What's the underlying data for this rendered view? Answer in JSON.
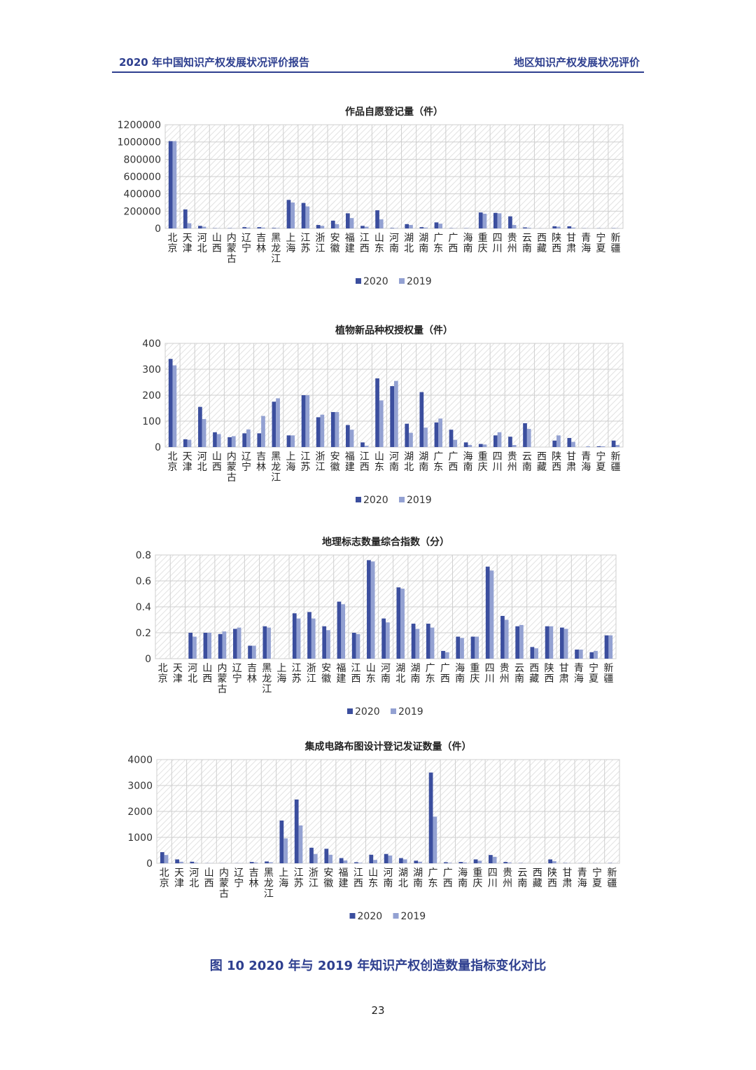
{
  "header": {
    "left": "2020 年中国知识产权发展状况评价报告",
    "right": "地区知识产权发展状况评价"
  },
  "caption": "图 10   2020 年与 2019 年知识产权创造数量指标变化对比",
  "page_number": "23",
  "colors": {
    "s2020": "#3b4e9e",
    "s2019": "#93a1d2",
    "grid": "#cfcfcf",
    "hatch": "#e2e2e2"
  },
  "regions": [
    "北京",
    "天津",
    "河北",
    "山西",
    "内蒙古",
    "辽宁",
    "吉林",
    "黑龙江",
    "上海",
    "江苏",
    "浙江",
    "安徽",
    "福建",
    "江西",
    "山东",
    "河南",
    "湖北",
    "湖南",
    "广东",
    "广西",
    "海南",
    "重庆",
    "四川",
    "贵州",
    "云南",
    "西藏",
    "陕西",
    "甘肃",
    "青海",
    "宁夏",
    "新疆"
  ],
  "chart_data": [
    {
      "type": "bar",
      "title": "作品自愿登记量（件）",
      "categories": [
        "北京",
        "天津",
        "河北",
        "山西",
        "内蒙古",
        "辽宁",
        "吉林",
        "黑龙江",
        "上海",
        "江苏",
        "浙江",
        "安徽",
        "福建",
        "江西",
        "山东",
        "河南",
        "湖北",
        "湖南",
        "广东",
        "广西",
        "海南",
        "重庆",
        "四川",
        "贵州",
        "云南",
        "西藏",
        "陕西",
        "甘肃",
        "青海",
        "宁夏",
        "新疆"
      ],
      "ylim": [
        0,
        1200000
      ],
      "yticks": [
        "0",
        "200000",
        "400000",
        "600000",
        "800000",
        "1000000",
        "1200000"
      ],
      "series": [
        {
          "name": "2020",
          "values": [
            1010000,
            220000,
            30000,
            3000,
            3000,
            15000,
            15000,
            6000,
            330000,
            295000,
            40000,
            90000,
            175000,
            30000,
            210000,
            5000,
            50000,
            15000,
            70000,
            3000,
            3000,
            185000,
            180000,
            140000,
            12000,
            1000,
            25000,
            25000,
            2000,
            2000,
            3000
          ]
        },
        {
          "name": "2019",
          "values": [
            1010000,
            60000,
            20000,
            2000,
            2000,
            10000,
            10000,
            5000,
            300000,
            255000,
            30000,
            50000,
            120000,
            20000,
            105000,
            4000,
            40000,
            10000,
            55000,
            2000,
            2000,
            170000,
            175000,
            40000,
            8000,
            800,
            20000,
            10000,
            1000,
            1000,
            2000
          ]
        }
      ]
    },
    {
      "type": "bar",
      "title": "植物新品种权授权量（件）",
      "categories": [
        "北京",
        "天津",
        "河北",
        "山西",
        "内蒙古",
        "辽宁",
        "吉林",
        "黑龙江",
        "上海",
        "江苏",
        "浙江",
        "安徽",
        "福建",
        "江西",
        "山东",
        "河南",
        "湖北",
        "湖南",
        "广东",
        "广西",
        "海南",
        "重庆",
        "四川",
        "贵州",
        "云南",
        "西藏",
        "陕西",
        "甘肃",
        "青海",
        "宁夏",
        "新疆"
      ],
      "ylim": [
        0,
        400
      ],
      "yticks": [
        "0",
        "100",
        "200",
        "300",
        "400"
      ],
      "series": [
        {
          "name": "2020",
          "values": [
            340,
            30,
            155,
            57,
            38,
            53,
            53,
            175,
            45,
            200,
            115,
            135,
            85,
            18,
            265,
            235,
            90,
            212,
            95,
            67,
            18,
            12,
            45,
            40,
            92,
            0,
            25,
            35,
            0,
            3,
            25
          ]
        },
        {
          "name": "2019",
          "values": [
            315,
            28,
            108,
            50,
            42,
            68,
            120,
            188,
            45,
            200,
            125,
            135,
            67,
            5,
            180,
            255,
            55,
            75,
            110,
            28,
            8,
            10,
            57,
            8,
            70,
            0,
            45,
            20,
            3,
            3,
            8
          ]
        }
      ]
    },
    {
      "type": "bar",
      "title": "地理标志数量综合指数（分）",
      "categories": [
        "北京",
        "天津",
        "河北",
        "山西",
        "内蒙古",
        "辽宁",
        "吉林",
        "黑龙江",
        "上海",
        "江苏",
        "浙江",
        "安徽",
        "福建",
        "江西",
        "山东",
        "河南",
        "湖北",
        "湖南",
        "广东",
        "广西",
        "海南",
        "重庆",
        "四川",
        "贵州",
        "云南",
        "西藏",
        "陕西",
        "甘肃",
        "青海",
        "宁夏",
        "新疆"
      ],
      "ylim": [
        0,
        0.8
      ],
      "yticks": [
        "0",
        "0.2",
        "0.4",
        "0.6",
        "0.8"
      ],
      "series": [
        {
          "name": "2020",
          "values": [
            0,
            0,
            0.2,
            0.2,
            0.19,
            0.23,
            0.1,
            0.25,
            0,
            0.35,
            0.36,
            0.25,
            0.44,
            0.2,
            0.76,
            0.31,
            0.55,
            0.27,
            0.27,
            0.06,
            0.17,
            0.17,
            0.71,
            0.33,
            0.25,
            0.09,
            0.25,
            0.24,
            0.07,
            0.05,
            0.18
          ]
        },
        {
          "name": "2019",
          "values": [
            0,
            0,
            0.17,
            0.2,
            0.21,
            0.24,
            0.1,
            0.24,
            0,
            0.31,
            0.31,
            0.22,
            0.42,
            0.19,
            0.75,
            0.28,
            0.54,
            0.23,
            0.24,
            0.05,
            0.16,
            0.17,
            0.68,
            0.3,
            0.26,
            0.08,
            0.25,
            0.23,
            0.07,
            0.06,
            0.18
          ]
        }
      ]
    },
    {
      "type": "bar",
      "title": "集成电路布图设计登记发证数量（件）",
      "categories": [
        "北京",
        "天津",
        "河北",
        "山西",
        "内蒙古",
        "辽宁",
        "吉林",
        "黑龙江",
        "上海",
        "江苏",
        "浙江",
        "安徽",
        "福建",
        "江西",
        "山东",
        "河南",
        "湖北",
        "湖南",
        "广东",
        "广西",
        "海南",
        "重庆",
        "四川",
        "贵州",
        "云南",
        "西藏",
        "陕西",
        "甘肃",
        "青海",
        "宁夏",
        "新疆"
      ],
      "ylim": [
        0,
        4000
      ],
      "yticks": [
        "0",
        "1000",
        "2000",
        "3000",
        "4000"
      ],
      "series": [
        {
          "name": "2020",
          "values": [
            430,
            150,
            60,
            5,
            5,
            5,
            50,
            70,
            1650,
            2460,
            600,
            560,
            200,
            40,
            330,
            360,
            200,
            100,
            3500,
            40,
            50,
            150,
            320,
            50,
            10,
            0,
            150,
            10,
            5,
            5,
            10
          ]
        },
        {
          "name": "2019",
          "values": [
            320,
            60,
            20,
            5,
            5,
            5,
            30,
            40,
            960,
            1460,
            360,
            330,
            110,
            20,
            130,
            300,
            150,
            60,
            1800,
            20,
            30,
            100,
            250,
            30,
            5,
            0,
            80,
            5,
            3,
            3,
            5
          ]
        }
      ]
    }
  ]
}
